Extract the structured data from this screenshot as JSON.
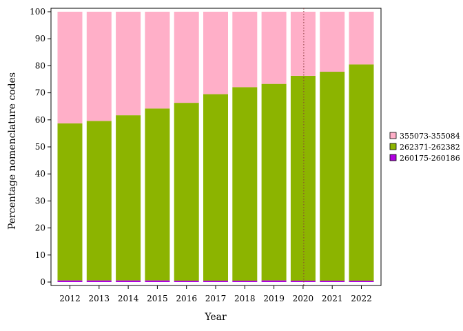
{
  "chart_data": {
    "type": "bar",
    "stacked": true,
    "xlabel": "Year",
    "ylabel": "Percentage nomenclature codes",
    "ylim": [
      0,
      100
    ],
    "yticks": [
      0,
      10,
      20,
      30,
      40,
      50,
      60,
      70,
      80,
      90,
      100
    ],
    "categories": [
      "2012",
      "2013",
      "2014",
      "2015",
      "2016",
      "2017",
      "2018",
      "2019",
      "2020",
      "2021",
      "2022"
    ],
    "series": [
      {
        "name": "260175-260186",
        "color": "#b000e0",
        "values": [
          0.6,
          0.6,
          0.6,
          0.6,
          0.5,
          0.5,
          0.5,
          0.6,
          0.5,
          0.5,
          0.5
        ]
      },
      {
        "name": "262371-262382",
        "color": "#8cb400",
        "values": [
          58.1,
          59.0,
          61.1,
          63.6,
          65.8,
          69.0,
          71.6,
          72.7,
          75.8,
          77.3,
          80.0
        ]
      },
      {
        "name": "355073-355084",
        "color": "#ffafc8",
        "values": [
          41.3,
          40.4,
          38.3,
          35.8,
          33.7,
          30.5,
          27.9,
          26.7,
          23.7,
          22.2,
          19.5
        ]
      }
    ],
    "legend_order": [
      "355073-355084",
      "262371-262382",
      "260175-260186"
    ],
    "legend_position": "right",
    "reference_line": {
      "x": "2020",
      "style": "dotted",
      "color": "#8b3a3a"
    },
    "grid": false
  }
}
